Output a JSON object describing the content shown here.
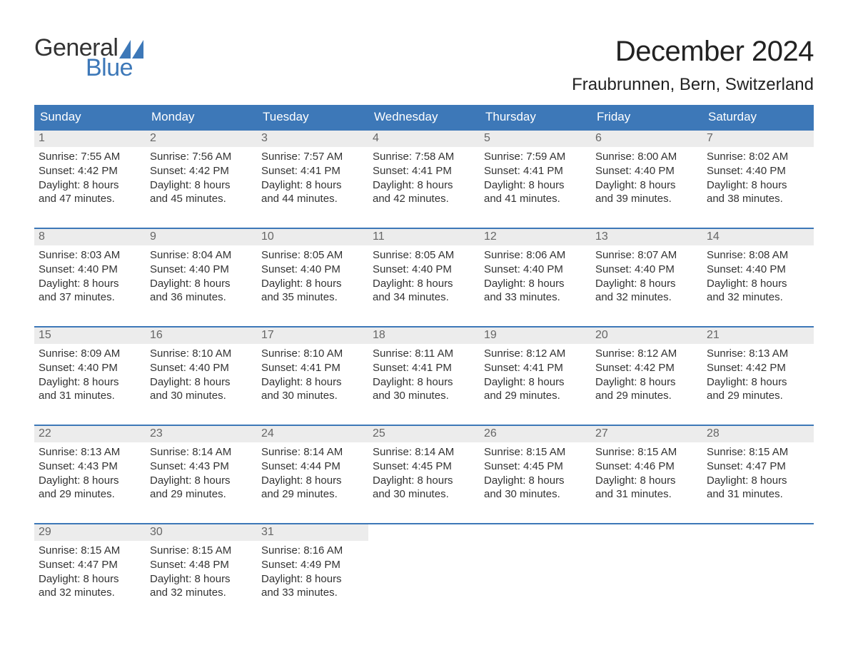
{
  "brand": {
    "general": "General",
    "blue": "Blue",
    "sail_color": "#3d78b8"
  },
  "header": {
    "month_title": "December 2024",
    "location": "Fraubrunnen, Bern, Switzerland"
  },
  "colors": {
    "header_bar_bg": "#3d78b8",
    "header_bar_text": "#ffffff",
    "daynum_bg": "#ececec",
    "daynum_text": "#666666",
    "body_text": "#333333",
    "row_divider": "#3d78b8",
    "page_bg": "#ffffff"
  },
  "typography": {
    "month_title_fontsize": 40,
    "location_fontsize": 24,
    "dow_fontsize": 17,
    "daynum_fontsize": 16,
    "body_fontsize": 15,
    "logo_fontsize": 34
  },
  "labels": {
    "sunrise_prefix": "Sunrise: ",
    "sunset_prefix": "Sunset: ",
    "daylight_prefix": "Daylight: ",
    "and": "and ",
    "hours": " hours",
    "minutes": " minutes."
  },
  "days_of_week": [
    "Sunday",
    "Monday",
    "Tuesday",
    "Wednesday",
    "Thursday",
    "Friday",
    "Saturday"
  ],
  "weeks": [
    [
      {
        "n": 1,
        "sunrise": "7:55 AM",
        "sunset": "4:42 PM",
        "dl_h": 8,
        "dl_m": 47
      },
      {
        "n": 2,
        "sunrise": "7:56 AM",
        "sunset": "4:42 PM",
        "dl_h": 8,
        "dl_m": 45
      },
      {
        "n": 3,
        "sunrise": "7:57 AM",
        "sunset": "4:41 PM",
        "dl_h": 8,
        "dl_m": 44
      },
      {
        "n": 4,
        "sunrise": "7:58 AM",
        "sunset": "4:41 PM",
        "dl_h": 8,
        "dl_m": 42
      },
      {
        "n": 5,
        "sunrise": "7:59 AM",
        "sunset": "4:41 PM",
        "dl_h": 8,
        "dl_m": 41
      },
      {
        "n": 6,
        "sunrise": "8:00 AM",
        "sunset": "4:40 PM",
        "dl_h": 8,
        "dl_m": 39
      },
      {
        "n": 7,
        "sunrise": "8:02 AM",
        "sunset": "4:40 PM",
        "dl_h": 8,
        "dl_m": 38
      }
    ],
    [
      {
        "n": 8,
        "sunrise": "8:03 AM",
        "sunset": "4:40 PM",
        "dl_h": 8,
        "dl_m": 37
      },
      {
        "n": 9,
        "sunrise": "8:04 AM",
        "sunset": "4:40 PM",
        "dl_h": 8,
        "dl_m": 36
      },
      {
        "n": 10,
        "sunrise": "8:05 AM",
        "sunset": "4:40 PM",
        "dl_h": 8,
        "dl_m": 35
      },
      {
        "n": 11,
        "sunrise": "8:05 AM",
        "sunset": "4:40 PM",
        "dl_h": 8,
        "dl_m": 34
      },
      {
        "n": 12,
        "sunrise": "8:06 AM",
        "sunset": "4:40 PM",
        "dl_h": 8,
        "dl_m": 33
      },
      {
        "n": 13,
        "sunrise": "8:07 AM",
        "sunset": "4:40 PM",
        "dl_h": 8,
        "dl_m": 32
      },
      {
        "n": 14,
        "sunrise": "8:08 AM",
        "sunset": "4:40 PM",
        "dl_h": 8,
        "dl_m": 32
      }
    ],
    [
      {
        "n": 15,
        "sunrise": "8:09 AM",
        "sunset": "4:40 PM",
        "dl_h": 8,
        "dl_m": 31
      },
      {
        "n": 16,
        "sunrise": "8:10 AM",
        "sunset": "4:40 PM",
        "dl_h": 8,
        "dl_m": 30
      },
      {
        "n": 17,
        "sunrise": "8:10 AM",
        "sunset": "4:41 PM",
        "dl_h": 8,
        "dl_m": 30
      },
      {
        "n": 18,
        "sunrise": "8:11 AM",
        "sunset": "4:41 PM",
        "dl_h": 8,
        "dl_m": 30
      },
      {
        "n": 19,
        "sunrise": "8:12 AM",
        "sunset": "4:41 PM",
        "dl_h": 8,
        "dl_m": 29
      },
      {
        "n": 20,
        "sunrise": "8:12 AM",
        "sunset": "4:42 PM",
        "dl_h": 8,
        "dl_m": 29
      },
      {
        "n": 21,
        "sunrise": "8:13 AM",
        "sunset": "4:42 PM",
        "dl_h": 8,
        "dl_m": 29
      }
    ],
    [
      {
        "n": 22,
        "sunrise": "8:13 AM",
        "sunset": "4:43 PM",
        "dl_h": 8,
        "dl_m": 29
      },
      {
        "n": 23,
        "sunrise": "8:14 AM",
        "sunset": "4:43 PM",
        "dl_h": 8,
        "dl_m": 29
      },
      {
        "n": 24,
        "sunrise": "8:14 AM",
        "sunset": "4:44 PM",
        "dl_h": 8,
        "dl_m": 29
      },
      {
        "n": 25,
        "sunrise": "8:14 AM",
        "sunset": "4:45 PM",
        "dl_h": 8,
        "dl_m": 30
      },
      {
        "n": 26,
        "sunrise": "8:15 AM",
        "sunset": "4:45 PM",
        "dl_h": 8,
        "dl_m": 30
      },
      {
        "n": 27,
        "sunrise": "8:15 AM",
        "sunset": "4:46 PM",
        "dl_h": 8,
        "dl_m": 31
      },
      {
        "n": 28,
        "sunrise": "8:15 AM",
        "sunset": "4:47 PM",
        "dl_h": 8,
        "dl_m": 31
      }
    ],
    [
      {
        "n": 29,
        "sunrise": "8:15 AM",
        "sunset": "4:47 PM",
        "dl_h": 8,
        "dl_m": 32
      },
      {
        "n": 30,
        "sunrise": "8:15 AM",
        "sunset": "4:48 PM",
        "dl_h": 8,
        "dl_m": 32
      },
      {
        "n": 31,
        "sunrise": "8:16 AM",
        "sunset": "4:49 PM",
        "dl_h": 8,
        "dl_m": 33
      },
      null,
      null,
      null,
      null
    ]
  ]
}
